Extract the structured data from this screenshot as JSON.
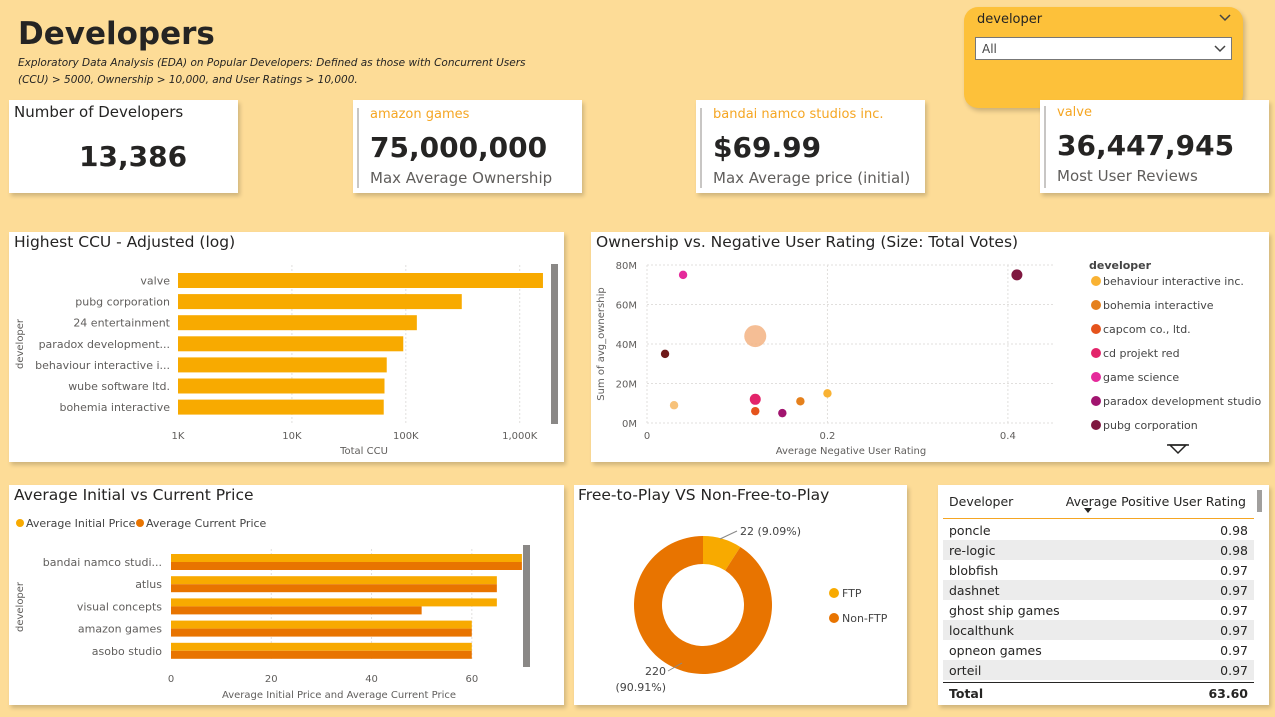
{
  "header": {
    "title": "Developers",
    "subtitle_line1": "Exploratory Data Analysis (EDA) on Popular Developers: Defined as those with Concurrent Users",
    "subtitle_line2": "(CCU) > 5000, Ownership > 10,000, and User Ratings > 10,000."
  },
  "slicer": {
    "label": "developer",
    "value": "All"
  },
  "kpis": [
    {
      "developer": "",
      "value": "13,386",
      "label": "Number of Developers"
    },
    {
      "developer": "amazon games",
      "value": "75,000,000",
      "label": "Max Average Ownership"
    },
    {
      "developer": "bandai namco studios inc.",
      "value": "$69.99",
      "label": "Max Average price (initial)"
    },
    {
      "developer": "valve",
      "value": "36,447,945",
      "label": "Most User Reviews"
    }
  ],
  "ccu_chart": {
    "title": "Highest CCU - Adjusted (log)"
  },
  "scatter_chart": {
    "title": "Ownership vs. Negative User Rating (Size: Total Votes)",
    "legend_title": "developer"
  },
  "price_chart": {
    "title": "Average Initial vs Current Price"
  },
  "donut_chart": {
    "title": "Free-to-Play VS Non-Free-to-Play"
  },
  "rating_table": {
    "col_developer": "Developer",
    "col_rating": "Average Positive User Rating",
    "rows": [
      {
        "developer": "poncle",
        "rating": "0.98"
      },
      {
        "developer": "re-logic",
        "rating": "0.98"
      },
      {
        "developer": "blobfish",
        "rating": "0.97"
      },
      {
        "developer": "dashnet",
        "rating": "0.97"
      },
      {
        "developer": "ghost ship games",
        "rating": "0.97"
      },
      {
        "developer": "localthunk",
        "rating": "0.97"
      },
      {
        "developer": "opneon games",
        "rating": "0.97"
      },
      {
        "developer": "orteil",
        "rating": "0.97"
      }
    ],
    "total_label": "Total",
    "total_value": "63.60"
  },
  "colors": {
    "background": "#fddc97",
    "bar": "#f8aa00",
    "initial_price": "#f8aa00",
    "current_price": "#e87400",
    "accent_text": "#f5a623"
  },
  "chart_data": [
    {
      "type": "bar",
      "orientation": "horizontal",
      "title": "Highest CCU - Adjusted (log)",
      "xlabel": "Total CCU",
      "ylabel": "developer",
      "xscale": "log",
      "xlim": [
        1000,
        2000000
      ],
      "xticks": [
        "1K",
        "10K",
        "100K",
        "1,000K"
      ],
      "categories": [
        "valve",
        "pubg corporation",
        "24 entertainment",
        "paradox development...",
        "behaviour interactive i...",
        "wube software ltd.",
        "bohemia interactive"
      ],
      "values": [
        1600000,
        310000,
        125000,
        95000,
        68000,
        65000,
        64000
      ]
    },
    {
      "type": "scatter",
      "title": "Ownership vs. Negative User Rating (Size: Total Votes)",
      "xlabel": "Average Negative User Rating",
      "ylabel": "Sum of avg_ownership",
      "xlim": [
        0,
        0.45
      ],
      "ylim": [
        0,
        80000000
      ],
      "xticks": [
        "0",
        "0.2",
        "0.4"
      ],
      "yticks": [
        "0M",
        "20M",
        "40M",
        "60M",
        "80M"
      ],
      "legend_title": "developer",
      "series": [
        {
          "name": "behaviour interactive inc.",
          "color": "#f9b233",
          "points": [
            {
              "x": 0.2,
              "y": 15000000,
              "size": 1
            }
          ]
        },
        {
          "name": "bohemia interactive",
          "color": "#e5801c",
          "points": [
            {
              "x": 0.17,
              "y": 11000000,
              "size": 1
            }
          ]
        },
        {
          "name": "capcom co., ltd.",
          "color": "#e5531c",
          "points": [
            {
              "x": 0.12,
              "y": 6000000,
              "size": 1
            }
          ]
        },
        {
          "name": "cd projekt red",
          "color": "#e3246a",
          "points": [
            {
              "x": 0.12,
              "y": 12000000,
              "size": 2
            }
          ]
        },
        {
          "name": "game science",
          "color": "#e52a9b",
          "points": [
            {
              "x": 0.04,
              "y": 75000000,
              "size": 1
            }
          ]
        },
        {
          "name": "paradox development studio",
          "color": "#a1146f",
          "points": [
            {
              "x": 0.15,
              "y": 5000000,
              "size": 1
            }
          ]
        },
        {
          "name": "pubg corporation",
          "color": "#7f1840",
          "points": [
            {
              "x": 0.41,
              "y": 75000000,
              "size": 2
            }
          ]
        },
        {
          "name": "",
          "color": "#6f1a1a",
          "points": [
            {
              "x": 0.02,
              "y": 35000000,
              "size": 1
            }
          ]
        },
        {
          "name": "",
          "color": "#f7c27a",
          "points": [
            {
              "x": 0.03,
              "y": 9000000,
              "size": 1
            }
          ]
        },
        {
          "name": "",
          "color": "#f3b383",
          "points": [
            {
              "x": 0.12,
              "y": 44000000,
              "size": 5
            }
          ]
        }
      ]
    },
    {
      "type": "bar",
      "orientation": "horizontal",
      "title": "Average Initial vs Current Price",
      "xlabel": "Average Initial Price and Average Current Price",
      "ylabel": "developer",
      "xlim": [
        0,
        72
      ],
      "xticks": [
        "0",
        "20",
        "40",
        "60"
      ],
      "categories": [
        "bandai namco studi...",
        "atlus",
        "visual concepts",
        "amazon games",
        "asobo studio"
      ],
      "series": [
        {
          "name": "Average Initial Price",
          "color": "#f8aa00",
          "values": [
            69.99,
            64.99,
            64.99,
            59.99,
            59.99
          ]
        },
        {
          "name": "Average Current Price",
          "color": "#e87400",
          "values": [
            69.99,
            64.99,
            49.99,
            59.99,
            59.99
          ]
        }
      ]
    },
    {
      "type": "pie",
      "variant": "donut",
      "title": "Free-to-Play VS Non-Free-to-Play",
      "categories": [
        "FTP",
        "Non-FTP"
      ],
      "values": [
        22,
        220
      ],
      "labels": [
        "22 (9.09%)",
        "220 (90.91%)"
      ],
      "colors": [
        "#f8aa00",
        "#e87400"
      ]
    }
  ]
}
